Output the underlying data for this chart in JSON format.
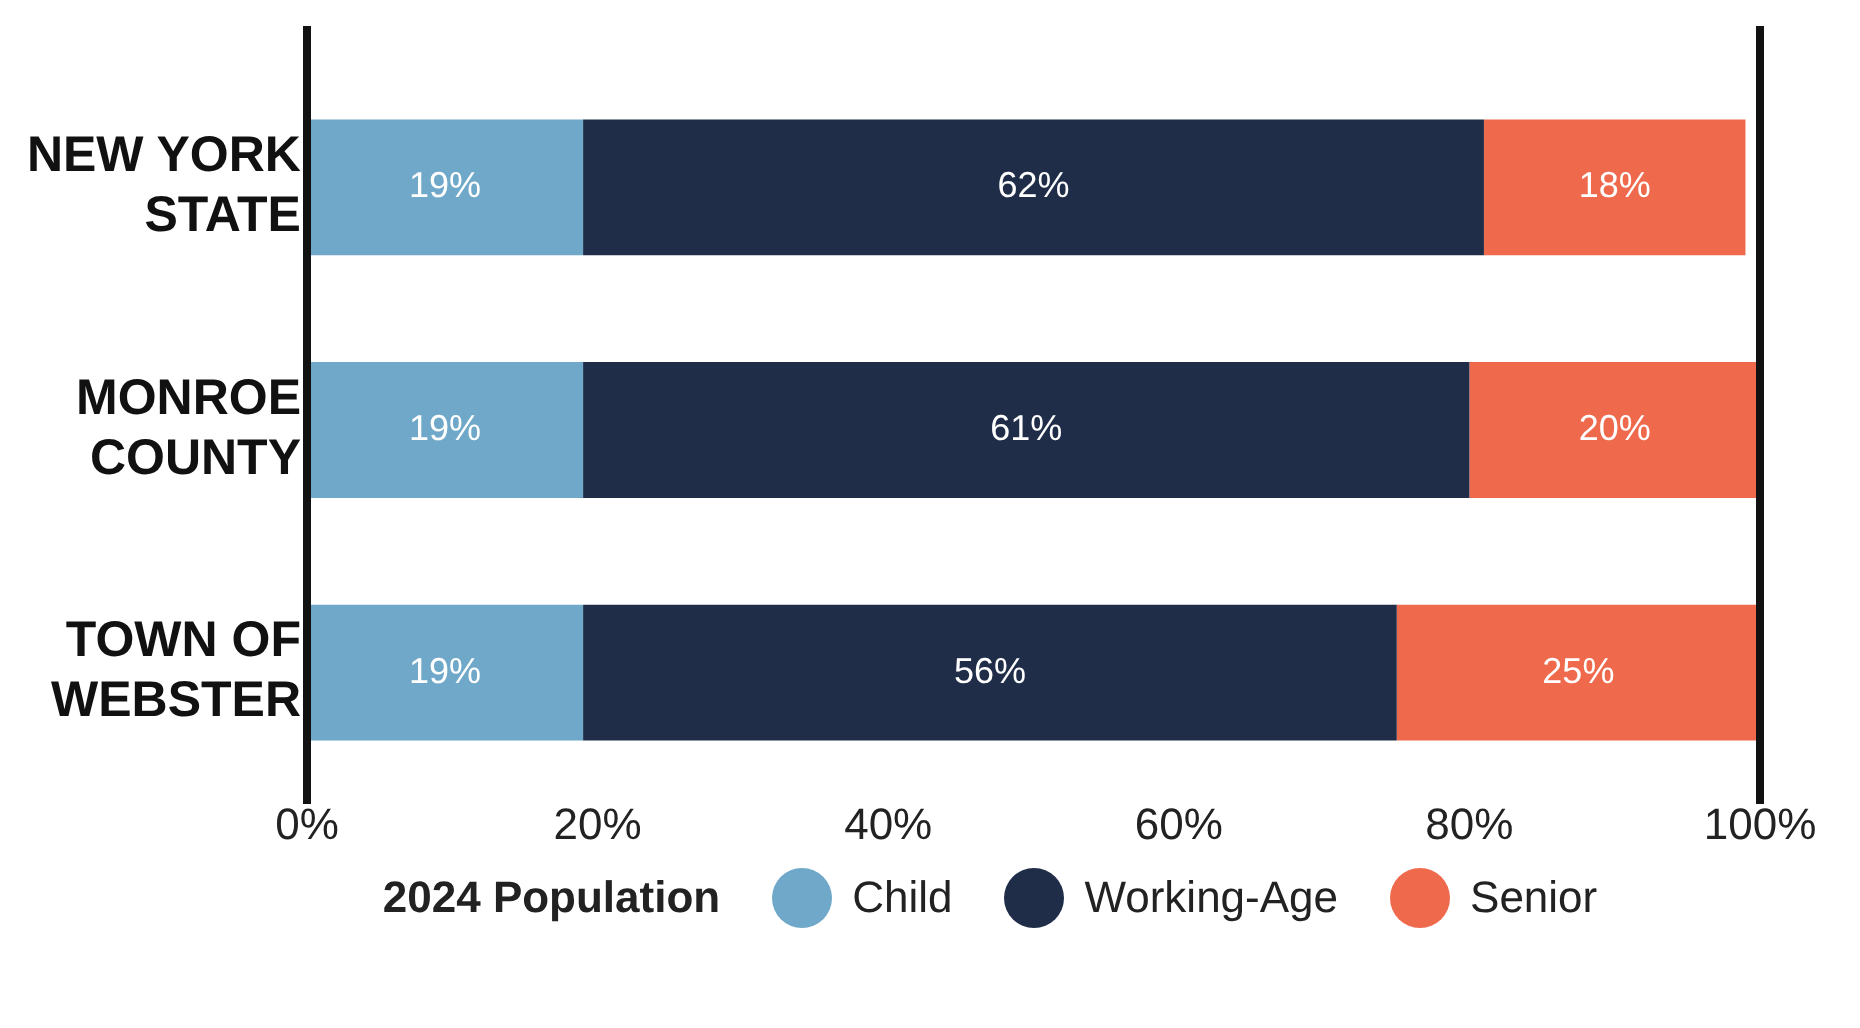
{
  "chart_data": {
    "type": "bar",
    "orientation": "horizontal",
    "stacked": true,
    "legend": "bottom",
    "legend_title": "2024 Population",
    "categories": [
      "NEW YORK STATE",
      "MONROE COUNTY",
      "TOWN OF WEBSTER"
    ],
    "series": [
      {
        "name": "Child",
        "color": "#6fa8c8",
        "values": [
          19,
          19,
          19
        ],
        "value_labels": [
          "19%",
          "19%",
          "19%"
        ]
      },
      {
        "name": "Working-Age",
        "color": "#1f2d48",
        "values": [
          62,
          61,
          56
        ],
        "value_labels": [
          "62%",
          "61%",
          "56%"
        ]
      },
      {
        "name": "Senior",
        "color": "#ef6a4d",
        "values": [
          18,
          20,
          25
        ],
        "value_labels": [
          "18%",
          "20%",
          "25%"
        ]
      }
    ],
    "xlim": [
      0,
      100
    ],
    "xticks": [
      {
        "value": 0,
        "label": "0%"
      },
      {
        "value": 20,
        "label": "20%"
      },
      {
        "value": 40,
        "label": "40%"
      },
      {
        "value": 60,
        "label": "60%"
      },
      {
        "value": 80,
        "label": "80%"
      },
      {
        "value": 100,
        "label": "100%"
      }
    ],
    "grid": false
  }
}
